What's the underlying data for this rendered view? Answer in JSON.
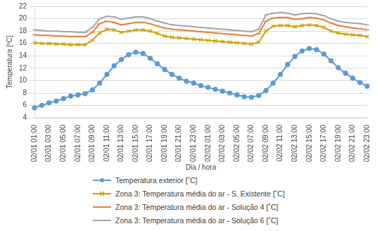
{
  "chart_data": {
    "type": "line",
    "x_label": "Dia / hora",
    "y_label": "Temperatura [ºC]",
    "categories": [
      "02/01 01:00",
      null,
      "02/01 03:00",
      null,
      "02/01 05:00",
      null,
      "02/01 07:00",
      null,
      "02/01 09:00",
      null,
      "02/01 11:00",
      null,
      "02/01 13:00",
      null,
      "02/01 15:00",
      null,
      "02/01 17:00",
      null,
      "02/01 19:00",
      null,
      "02/01 21:00",
      null,
      "02/01 23:00",
      null,
      "02/02 01:00",
      null,
      "02/02 03:00",
      null,
      "02/02 05:00",
      null,
      "02/02 07:00",
      null,
      "02/02 09:00",
      null,
      "02/02 11:00",
      null,
      "02/02 13:00",
      null,
      "02/02 15:00",
      null,
      "02/02 17:00",
      null,
      "02/02 19:00",
      null,
      "02/02 21:00",
      null,
      "02/02 23:00"
    ],
    "series": [
      {
        "name": "Temperatura exterior [˚C]",
        "color": "#5b9bd5",
        "marker": "circle",
        "values": [
          5.6,
          6.0,
          6.4,
          6.7,
          7.1,
          7.5,
          7.7,
          7.9,
          8.5,
          9.6,
          11.0,
          12.4,
          13.4,
          14.2,
          14.6,
          14.4,
          13.6,
          12.7,
          11.8,
          11.0,
          10.4,
          9.9,
          9.6,
          9.2,
          8.9,
          8.6,
          8.3,
          8.0,
          7.7,
          7.4,
          7.3,
          7.6,
          8.4,
          9.6,
          11.0,
          12.6,
          13.9,
          14.8,
          15.2,
          15.0,
          14.3,
          13.2,
          12.1,
          11.2,
          10.4,
          9.7,
          9.1
        ]
      },
      {
        "name": "Zona 3: Temperatura média do ar - S. Existente [˚C]",
        "color": "#c9a100",
        "marker": "x",
        "values": [
          16.1,
          16.0,
          16.0,
          15.9,
          15.9,
          15.8,
          15.8,
          15.8,
          16.5,
          17.7,
          18.3,
          18.2,
          17.8,
          18.0,
          18.2,
          18.2,
          18.0,
          17.6,
          17.2,
          17.0,
          16.9,
          16.8,
          16.7,
          16.6,
          16.5,
          16.4,
          16.3,
          16.2,
          16.1,
          16.0,
          15.9,
          16.2,
          18.0,
          18.8,
          18.9,
          18.9,
          18.7,
          18.9,
          19.0,
          18.9,
          18.6,
          18.0,
          17.7,
          17.5,
          17.4,
          17.3,
          17.1
        ]
      },
      {
        "name": "Zona 3: Temperatura média do ar - Solução 4 [˚C]",
        "color": "#ed7d31",
        "marker": "dash",
        "values": [
          17.4,
          17.3,
          17.3,
          17.2,
          17.2,
          17.1,
          17.1,
          17.1,
          17.8,
          19.2,
          19.6,
          19.4,
          19.0,
          19.2,
          19.4,
          19.4,
          19.2,
          18.8,
          18.5,
          18.3,
          18.2,
          18.1,
          18.0,
          17.9,
          17.8,
          17.7,
          17.6,
          17.5,
          17.4,
          17.3,
          17.2,
          17.6,
          19.6,
          20.1,
          20.2,
          20.2,
          19.9,
          20.0,
          20.2,
          20.1,
          19.8,
          19.3,
          18.9,
          18.7,
          18.5,
          18.4,
          18.2
        ]
      },
      {
        "name": "Zona 3: Temperatura média do ar - Solução 6 [˚C]",
        "color": "#a5a5a5",
        "marker": "dash",
        "values": [
          18.2,
          18.1,
          18.0,
          18.0,
          17.9,
          17.9,
          17.8,
          17.8,
          18.6,
          20.0,
          20.4,
          20.3,
          19.9,
          20.1,
          20.3,
          20.3,
          20.0,
          19.6,
          19.3,
          19.0,
          18.9,
          18.8,
          18.7,
          18.6,
          18.5,
          18.4,
          18.3,
          18.2,
          18.1,
          18.0,
          17.9,
          18.3,
          20.6,
          20.9,
          21.0,
          20.9,
          20.6,
          20.8,
          20.9,
          20.8,
          20.5,
          20.0,
          19.6,
          19.4,
          19.3,
          19.2,
          19.0
        ]
      }
    ],
    "ylim": [
      4,
      22
    ],
    "yticks": [
      4,
      6,
      8,
      10,
      12,
      14,
      16,
      18,
      20,
      22
    ],
    "grid": true,
    "legend": "bottom"
  }
}
